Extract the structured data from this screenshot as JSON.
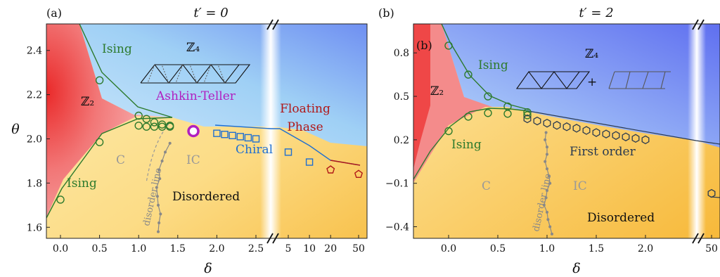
{
  "chart_data": [
    {
      "panel_label": "(a)",
      "title": "t′ = 0",
      "type": "scatter",
      "xlabel": "δ",
      "ylabel": "θ",
      "xticks": [
        "0.0",
        "0.5",
        "1.0",
        "1.5",
        "2.0",
        "2.5",
        "5",
        "10",
        "20",
        "50"
      ],
      "yticks": [
        "1.6",
        "1.8",
        "2.0",
        "2.2",
        "2.4"
      ],
      "ylim": [
        1.55,
        2.52
      ],
      "x_axis_break": true,
      "colors": {
        "Ising": "#2d7a2d",
        "Chiral": "#1f6fd1",
        "Ashkin-Teller": "#b020c0",
        "Floating": "#b01818",
        "disorder": "#999999"
      },
      "region_labels": {
        "z2": "ℤ₂",
        "z4": "ℤ₄",
        "ising_top": "Ising",
        "ising_bottom": "Ising",
        "ashkin": "Ashkin-Teller",
        "chiral": "Chiral",
        "floating1": "Floating",
        "floating2": "Phase",
        "c": "C",
        "ic": "IC",
        "disordered": "Disordered",
        "disorder_line": "disorder line"
      },
      "series": [
        {
          "name": "Ising",
          "marker": "circle",
          "points": [
            [
              0.0,
              1.725
            ],
            [
              0.5,
              2.265
            ],
            [
              0.5,
              1.985
            ],
            [
              1.0,
              2.105
            ],
            [
              1.1,
              2.09
            ],
            [
              1.2,
              2.075
            ],
            [
              1.3,
              2.065
            ],
            [
              1.4,
              2.06
            ],
            [
              1.0,
              2.06
            ],
            [
              1.1,
              2.055
            ],
            [
              1.2,
              2.055
            ],
            [
              1.3,
              2.055
            ],
            [
              1.4,
              2.055
            ]
          ]
        },
        {
          "name": "Ashkin-Teller",
          "marker": "circle",
          "points": [
            [
              1.7,
              2.035
            ]
          ]
        },
        {
          "name": "Chiral",
          "marker": "square",
          "points": [
            [
              2.0,
              2.025
            ],
            [
              2.1,
              2.02
            ],
            [
              2.2,
              2.015
            ],
            [
              2.3,
              2.01
            ],
            [
              2.4,
              2.005
            ],
            [
              2.5,
              2.0
            ],
            [
              5,
              1.94
            ],
            [
              10,
              1.895
            ]
          ]
        },
        {
          "name": "Floating",
          "marker": "pentagon",
          "points": [
            [
              20,
              1.86
            ],
            [
              50,
              1.84
            ]
          ]
        },
        {
          "name": "disorder line",
          "marker": "dot",
          "points": [
            [
              1.25,
              1.58
            ],
            [
              1.26,
              1.62
            ],
            [
              1.28,
              1.66
            ],
            [
              1.25,
              1.7
            ],
            [
              1.24,
              1.74
            ],
            [
              1.23,
              1.78
            ],
            [
              1.27,
              1.82
            ],
            [
              1.26,
              1.86
            ],
            [
              1.3,
              1.9
            ],
            [
              1.34,
              1.94
            ],
            [
              1.4,
              1.98
            ]
          ]
        }
      ]
    },
    {
      "panel_label": "(b)",
      "panel_label_inner": "(b)",
      "title": "t′ = 2",
      "type": "scatter",
      "xlabel": "δ",
      "ylabel": "",
      "xticks": [
        "0.0",
        "0.5",
        "1.0",
        "1.5",
        "2.0",
        "50"
      ],
      "yticks": [
        "0.8",
        "0.5",
        "0.2",
        "−0.1",
        "−0.4"
      ],
      "ylim": [
        -0.48,
        1.0
      ],
      "x_axis_break": true,
      "region_labels": {
        "z2": "ℤ₂",
        "z4": "ℤ₄",
        "ising_top": "Ising",
        "ising_bottom": "Ising",
        "first_order": "First order",
        "c": "C",
        "ic": "IC",
        "disordered": "Disordered",
        "disorder_line": "disorder line",
        "plus": "+"
      },
      "series": [
        {
          "name": "Ising",
          "marker": "circle",
          "points": [
            [
              0.0,
              0.85
            ],
            [
              0.2,
              0.65
            ],
            [
              0.4,
              0.5
            ],
            [
              0.6,
              0.43
            ],
            [
              0.8,
              0.39
            ],
            [
              0.0,
              0.26
            ],
            [
              0.2,
              0.36
            ],
            [
              0.4,
              0.385
            ],
            [
              0.6,
              0.38
            ],
            [
              0.8,
              0.37
            ]
          ]
        },
        {
          "name": "First order",
          "marker": "hexagon",
          "points": [
            [
              0.8,
              0.345
            ],
            [
              0.9,
              0.33
            ],
            [
              1.0,
              0.315
            ],
            [
              1.1,
              0.3
            ],
            [
              1.2,
              0.29
            ],
            [
              1.3,
              0.28
            ],
            [
              1.4,
              0.265
            ],
            [
              1.5,
              0.25
            ],
            [
              1.6,
              0.24
            ],
            [
              1.7,
              0.23
            ],
            [
              1.8,
              0.22
            ],
            [
              1.9,
              0.21
            ],
            [
              2.0,
              0.2
            ],
            [
              50,
              -0.17
            ]
          ]
        },
        {
          "name": "disorder line",
          "marker": "dot",
          "points": [
            [
              1.05,
              -0.45
            ],
            [
              1.03,
              -0.4
            ],
            [
              1.01,
              -0.35
            ],
            [
              1.0,
              -0.3
            ],
            [
              0.97,
              -0.25
            ],
            [
              0.99,
              -0.2
            ],
            [
              1.0,
              -0.15
            ],
            [
              1.03,
              -0.1
            ],
            [
              1.02,
              -0.05
            ],
            [
              1.0,
              0.0
            ],
            [
              0.98,
              0.05
            ],
            [
              1.0,
              0.1
            ],
            [
              1.0,
              0.15
            ],
            [
              0.98,
              0.2
            ],
            [
              0.99,
              0.25
            ]
          ]
        }
      ]
    }
  ]
}
